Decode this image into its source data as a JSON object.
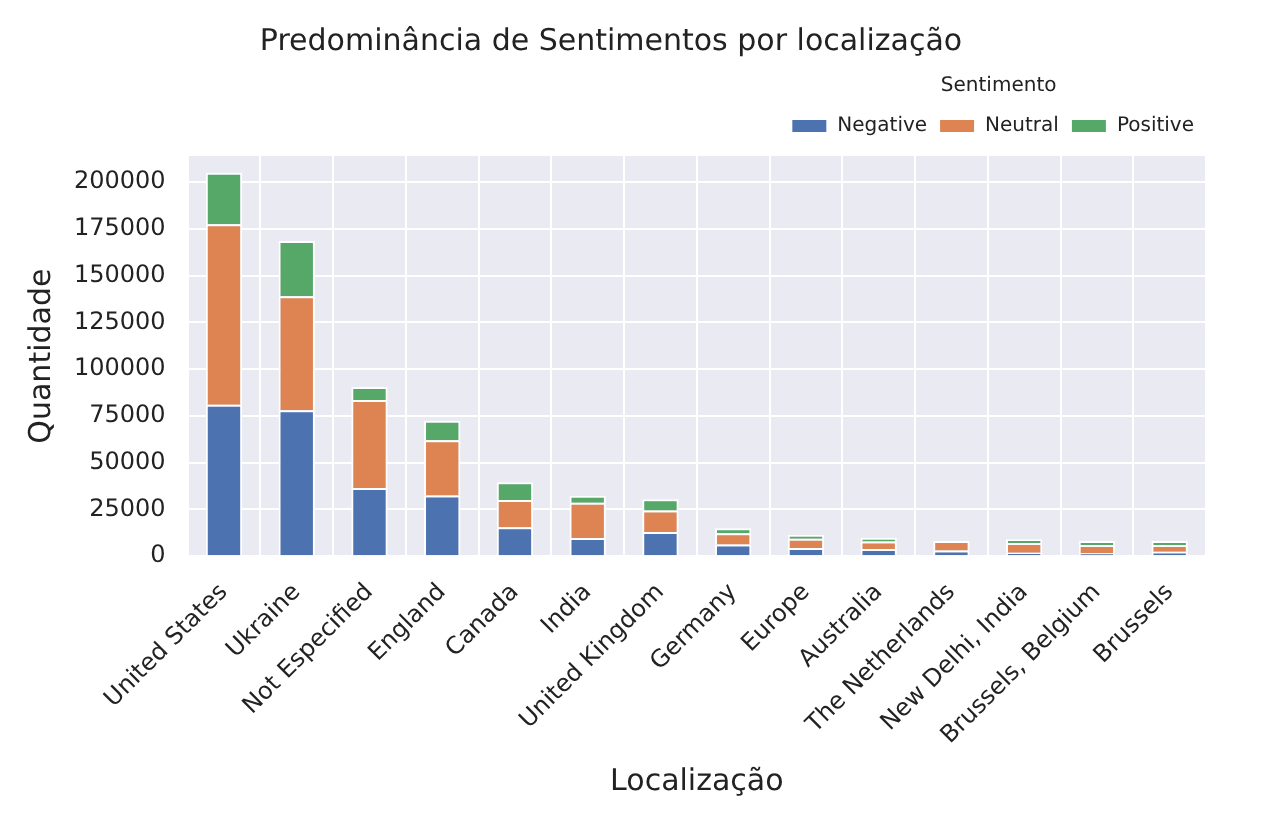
{
  "chart_data": {
    "type": "bar",
    "title": "Predominância de Sentimentos por localização",
    "xlabel": "Localização",
    "ylabel": "Quantidade",
    "legend_title": "Sentimento",
    "legend": "top right",
    "grid": true,
    "stacked": true,
    "categories": [
      "United States",
      "Ukraine",
      "Not Especified",
      "England",
      "Canada",
      "India",
      "United Kingdom",
      "Germany",
      "Europe",
      "Australia",
      "The Netherlands",
      "New Delhi, India",
      "Brussels, Belgium",
      "Brussels"
    ],
    "series": [
      {
        "name": "Negative",
        "color": "#4c72b0",
        "values": [
          81000,
          78000,
          36500,
          32500,
          15500,
          9700,
          13000,
          6300,
          4400,
          3900,
          3100,
          1800,
          1600,
          2400
        ]
      },
      {
        "name": "Neutral",
        "color": "#dd8452",
        "values": [
          96500,
          61000,
          47000,
          29500,
          14500,
          18900,
          11500,
          6000,
          5000,
          4000,
          5000,
          5300,
          4400,
          3600
        ]
      },
      {
        "name": "Positive",
        "color": "#55a868",
        "values": [
          27500,
          29500,
          7000,
          10500,
          9500,
          3700,
          6000,
          2700,
          2100,
          1800,
          null,
          2000,
          2100,
          2100
        ]
      }
    ],
    "ylim": [
      0,
      214000
    ],
    "yticks": [
      0,
      25000,
      50000,
      75000,
      100000,
      125000,
      150000,
      175000,
      200000
    ]
  }
}
